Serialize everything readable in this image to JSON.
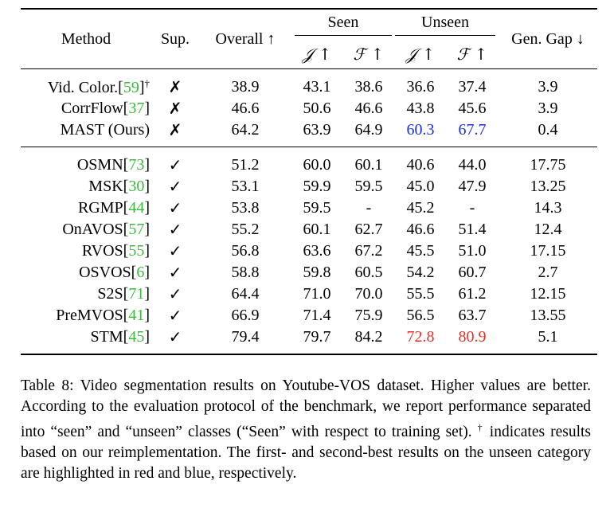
{
  "table": {
    "headers": {
      "method": "Method",
      "sup": "Sup.",
      "overall": "Overall ↑",
      "seen": "Seen",
      "unseen": "Unseen",
      "gen_gap": "Gen. Gap ↓",
      "j_metric": "𝒥 ↑",
      "f_metric": "ℱ ↑"
    },
    "group1": [
      {
        "method": "Vid. Color.",
        "cite": "59",
        "dagger": "†",
        "sup": "✗",
        "overall": "38.9",
        "seen_j": "43.1",
        "seen_f": "38.6",
        "unseen_j": "36.6",
        "unseen_f": "37.4",
        "gap": "3.9"
      },
      {
        "method": "CorrFlow",
        "cite": "37",
        "sup": "✗",
        "overall": "46.6",
        "seen_j": "50.6",
        "seen_f": "46.6",
        "unseen_j": "43.8",
        "unseen_f": "45.6",
        "gap": "3.9"
      },
      {
        "method": "MAST (Ours)",
        "sup": "✗",
        "overall": "64.2",
        "seen_j": "63.9",
        "seen_f": "64.9",
        "unseen_j": "60.3",
        "unseen_f": "67.7",
        "gap": "0.4"
      }
    ],
    "group2": [
      {
        "method": "OSMN",
        "cite": "73",
        "sup": "✓",
        "overall": "51.2",
        "seen_j": "60.0",
        "seen_f": "60.1",
        "unseen_j": "40.6",
        "unseen_f": "44.0",
        "gap": "17.75"
      },
      {
        "method": "MSK",
        "cite": "30",
        "sup": "✓",
        "overall": "53.1",
        "seen_j": "59.9",
        "seen_f": "59.5",
        "unseen_j": "45.0",
        "unseen_f": "47.9",
        "gap": "13.25"
      },
      {
        "method": "RGMP",
        "cite": "44",
        "sup": "✓",
        "overall": "53.8",
        "seen_j": "59.5",
        "seen_f": "-",
        "unseen_j": "45.2",
        "unseen_f": "-",
        "gap": "14.3"
      },
      {
        "method": "OnAVOS",
        "cite": "57",
        "sup": "✓",
        "overall": "55.2",
        "seen_j": "60.1",
        "seen_f": "62.7",
        "unseen_j": "46.6",
        "unseen_f": "51.4",
        "gap": "12.4"
      },
      {
        "method": "RVOS",
        "cite": "55",
        "sup": "✓",
        "overall": "56.8",
        "seen_j": "63.6",
        "seen_f": "67.2",
        "unseen_j": "45.5",
        "unseen_f": "51.0",
        "gap": "17.15"
      },
      {
        "method": "OSVOS",
        "cite": "6",
        "sup": "✓",
        "overall": "58.8",
        "seen_j": "59.8",
        "seen_f": "60.5",
        "unseen_j": "54.2",
        "unseen_f": "60.7",
        "gap": "2.7"
      },
      {
        "method": "S2S",
        "cite": "71",
        "sup": "✓",
        "overall": "64.4",
        "seen_j": "71.0",
        "seen_f": "70.0",
        "unseen_j": "55.5",
        "unseen_f": "61.2",
        "gap": "12.15"
      },
      {
        "method": "PreMVOS",
        "cite": "41",
        "sup": "✓",
        "overall": "66.9",
        "seen_j": "71.4",
        "seen_f": "75.9",
        "unseen_j": "56.5",
        "unseen_f": "63.7",
        "gap": "13.55"
      },
      {
        "method": "STM",
        "cite": "45",
        "sup": "✓",
        "overall": "79.4",
        "seen_j": "79.7",
        "seen_f": "84.2",
        "unseen_j": "72.8",
        "unseen_f": "80.9",
        "gap": "5.1"
      }
    ],
    "colors": {
      "citation": "#3dba3d",
      "best": "#e8302a",
      "second_best": "#1b2de0"
    }
  },
  "caption": {
    "part1": "Table 8: Video segmentation results on Youtube-VOS dataset. Higher values are better. According to the evaluation protocol of the benchmark, we report performance separated into “seen” and “unseen” classes (“Seen” with respect to training set). ",
    "dagger": "†",
    "part2": " indicates results based on our reimplementation. The first- and second-best results on the unseen category are highlighted in red and blue, respectively."
  }
}
